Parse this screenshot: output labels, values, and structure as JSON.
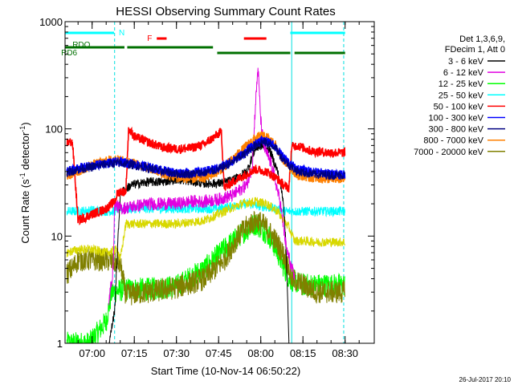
{
  "chart_data": {
    "type": "line",
    "title": "HESSI Observing Summary Count Rates",
    "xlabel": "Start Time (10-Nov-14 06:50:22)",
    "ylabel": "Count Rate (s⁻¹ detector⁻¹)",
    "ylabel_main": "Count Rate (s",
    "ylabel_sup1": "-1",
    "ylabel_mid": " detector",
    "ylabel_sup2": "-1",
    "ylabel_end": ")",
    "y_scale": "log",
    "ylim": [
      1,
      1000
    ],
    "xlim_minutes": [
      -9.63,
      100.37
    ],
    "x_ticks": [
      {
        "label": "07:00",
        "minutes": 0
      },
      {
        "label": "07:15",
        "minutes": 15
      },
      {
        "label": "07:30",
        "minutes": 30
      },
      {
        "label": "07:45",
        "minutes": 45
      },
      {
        "label": "08:00",
        "minutes": 60
      },
      {
        "label": "08:15",
        "minutes": 75
      },
      {
        "label": "08:30",
        "minutes": 90
      }
    ],
    "y_ticks": [
      {
        "label": "1",
        "value": 1
      },
      {
        "label": "10",
        "value": 10
      },
      {
        "label": "100",
        "value": 100
      },
      {
        "label": "1000",
        "value": 1000
      }
    ],
    "legend_header": [
      "Det 1,3,6,9,",
      "FDecim 1, Att 0"
    ],
    "legend_placement": "right",
    "footer_date": "26-Jul-2017 20:10",
    "series": [
      {
        "name": "3 - 6 keV",
        "color": "#000000",
        "points": [
          [
            6,
            1
          ],
          [
            8,
            2
          ],
          [
            10,
            25
          ],
          [
            14,
            30
          ],
          [
            20,
            32
          ],
          [
            25,
            32
          ],
          [
            30,
            34
          ],
          [
            40,
            31
          ],
          [
            45,
            31
          ],
          [
            50,
            33
          ],
          [
            55,
            40
          ],
          [
            58,
            65
          ],
          [
            60,
            70
          ],
          [
            63,
            65
          ],
          [
            66,
            40
          ],
          [
            68,
            22
          ],
          [
            69,
            8
          ],
          [
            70,
            1
          ]
        ]
      },
      {
        "name": "6 - 12 keV",
        "color": "#e000e0",
        "points": [
          [
            6,
            2.5
          ],
          [
            7.5,
            5
          ],
          [
            8,
            20
          ],
          [
            10,
            18
          ],
          [
            15,
            19
          ],
          [
            20,
            20
          ],
          [
            25,
            20
          ],
          [
            30,
            20
          ],
          [
            35,
            21
          ],
          [
            40,
            21
          ],
          [
            45,
            22
          ],
          [
            50,
            24
          ],
          [
            55,
            30
          ],
          [
            57,
            45
          ],
          [
            58,
            150
          ],
          [
            59,
            380
          ],
          [
            60,
            120
          ],
          [
            61,
            70
          ],
          [
            62,
            60
          ],
          [
            64,
            45
          ],
          [
            67,
            20
          ],
          [
            69,
            8
          ],
          [
            71,
            5
          ],
          [
            72,
            4
          ]
        ]
      },
      {
        "name": "12 - 25 keV",
        "color": "#00ff00",
        "points": [
          [
            -9,
            1
          ],
          [
            -1,
            1
          ],
          [
            5,
            1.6
          ],
          [
            7,
            3
          ],
          [
            12,
            3.2
          ],
          [
            20,
            3.2
          ],
          [
            30,
            3.4
          ],
          [
            40,
            5
          ],
          [
            48,
            8
          ],
          [
            54,
            11
          ],
          [
            58,
            13
          ],
          [
            60,
            12
          ],
          [
            63,
            10
          ],
          [
            66,
            7
          ],
          [
            70,
            4
          ],
          [
            75,
            3.5
          ],
          [
            80,
            3.5
          ],
          [
            85,
            3.5
          ],
          [
            90,
            3.5
          ]
        ]
      },
      {
        "name": "25 - 50 keV",
        "color": "#00ffff",
        "points": [
          [
            -9,
            17
          ],
          [
            -5,
            17
          ],
          [
            0,
            17.5
          ],
          [
            5,
            17
          ],
          [
            8,
            17
          ],
          [
            9,
            18
          ],
          [
            12,
            18
          ],
          [
            20,
            18
          ],
          [
            30,
            18
          ],
          [
            40,
            18
          ],
          [
            45,
            18
          ],
          [
            50,
            19
          ],
          [
            55,
            20
          ],
          [
            60,
            19
          ],
          [
            65,
            18
          ],
          [
            69,
            17
          ],
          [
            73,
            17
          ],
          [
            80,
            17
          ],
          [
            90,
            17
          ]
        ]
      },
      {
        "name": "50 - 100 keV",
        "color": "#ff0000",
        "points": [
          [
            -9,
            75
          ],
          [
            -7,
            75
          ],
          [
            -5,
            14
          ],
          [
            0,
            16
          ],
          [
            5,
            18
          ],
          [
            8,
            21
          ],
          [
            9,
            25
          ],
          [
            10,
            26
          ],
          [
            12,
            26
          ],
          [
            13,
            100
          ],
          [
            15,
            85
          ],
          [
            20,
            75
          ],
          [
            25,
            67
          ],
          [
            30,
            65
          ],
          [
            35,
            66
          ],
          [
            40,
            72
          ],
          [
            45,
            90
          ],
          [
            46,
            95
          ],
          [
            47,
            28
          ],
          [
            50,
            32
          ],
          [
            55,
            38
          ],
          [
            58,
            42
          ],
          [
            62,
            40
          ],
          [
            66,
            34
          ],
          [
            68,
            30
          ],
          [
            70,
            28
          ],
          [
            71,
            68
          ],
          [
            73,
            70
          ],
          [
            78,
            62
          ],
          [
            85,
            60
          ],
          [
            90,
            60
          ]
        ]
      },
      {
        "name": "100 - 300 keV",
        "color": "#0000ff",
        "points": [
          [
            -9,
            40
          ],
          [
            -5,
            43
          ],
          [
            0,
            45
          ],
          [
            5,
            48
          ],
          [
            10,
            49
          ],
          [
            15,
            47
          ],
          [
            20,
            44
          ],
          [
            25,
            41
          ],
          [
            30,
            39
          ],
          [
            35,
            39
          ],
          [
            40,
            40
          ],
          [
            45,
            43
          ],
          [
            50,
            50
          ],
          [
            55,
            62
          ],
          [
            58,
            72
          ],
          [
            60,
            78
          ],
          [
            62,
            76
          ],
          [
            65,
            70
          ],
          [
            67,
            58
          ],
          [
            70,
            48
          ],
          [
            73,
            42
          ],
          [
            78,
            40
          ],
          [
            85,
            38
          ],
          [
            90,
            38
          ]
        ]
      },
      {
        "name": "300 - 800 keV",
        "color": "#000080",
        "points": [
          [
            -9,
            39
          ],
          [
            -5,
            42
          ],
          [
            0,
            44
          ],
          [
            5,
            47
          ],
          [
            10,
            48
          ],
          [
            15,
            46
          ],
          [
            20,
            43
          ],
          [
            25,
            40
          ],
          [
            30,
            38
          ],
          [
            35,
            38
          ],
          [
            40,
            39
          ],
          [
            45,
            42
          ],
          [
            50,
            49
          ],
          [
            55,
            60
          ],
          [
            58,
            70
          ],
          [
            60,
            76
          ],
          [
            62,
            74
          ],
          [
            65,
            68
          ],
          [
            67,
            56
          ],
          [
            70,
            46
          ],
          [
            73,
            40
          ],
          [
            78,
            38
          ],
          [
            85,
            37
          ],
          [
            90,
            37
          ]
        ]
      },
      {
        "name": "800 - 7000 keV",
        "color": "#ff8000",
        "points": [
          [
            -9,
            36
          ],
          [
            -5,
            40
          ],
          [
            0,
            46
          ],
          [
            5,
            50
          ],
          [
            8,
            52
          ],
          [
            10,
            51
          ],
          [
            15,
            48
          ],
          [
            20,
            43
          ],
          [
            25,
            38
          ],
          [
            30,
            35
          ],
          [
            35,
            34
          ],
          [
            40,
            35
          ],
          [
            45,
            40
          ],
          [
            50,
            52
          ],
          [
            55,
            70
          ],
          [
            58,
            82
          ],
          [
            60,
            86
          ],
          [
            62,
            84
          ],
          [
            65,
            72
          ],
          [
            67,
            56
          ],
          [
            70,
            45
          ],
          [
            73,
            37
          ],
          [
            78,
            35
          ],
          [
            85,
            34
          ],
          [
            90,
            34
          ]
        ]
      },
      {
        "name": "7000 - 20000 keV",
        "color": "#808000",
        "points": [
          [
            -9,
            4.5
          ],
          [
            -7,
            5
          ],
          [
            -5,
            6
          ],
          [
            0,
            6
          ],
          [
            5,
            6
          ],
          [
            10,
            5.5
          ],
          [
            12,
            2.8
          ],
          [
            15,
            2.9
          ],
          [
            20,
            3
          ],
          [
            30,
            3.3
          ],
          [
            40,
            4
          ],
          [
            47,
            6
          ],
          [
            52,
            10
          ],
          [
            56,
            13
          ],
          [
            59,
            14
          ],
          [
            62,
            12
          ],
          [
            66,
            8.5
          ],
          [
            69,
            6
          ],
          [
            71,
            4
          ],
          [
            75,
            3.5
          ],
          [
            80,
            3
          ],
          [
            85,
            3
          ],
          [
            90,
            3
          ]
        ]
      },
      {
        "name": "",
        "color": "#d8d800",
        "points": [
          [
            -9,
            7
          ],
          [
            -5,
            7.5
          ],
          [
            0,
            7.5
          ],
          [
            5,
            7
          ],
          [
            9,
            7.5
          ],
          [
            10,
            6
          ],
          [
            12,
            13
          ],
          [
            15,
            13
          ],
          [
            20,
            13
          ],
          [
            30,
            13
          ],
          [
            40,
            14
          ],
          [
            47,
            17
          ],
          [
            53,
            20
          ],
          [
            58,
            21
          ],
          [
            62,
            20
          ],
          [
            66,
            17
          ],
          [
            70,
            12
          ],
          [
            72,
            9
          ],
          [
            75,
            9
          ],
          [
            80,
            8.8
          ],
          [
            85,
            8.8
          ],
          [
            90,
            8.8
          ]
        ]
      }
    ],
    "state_bars": [
      {
        "label": "N",
        "color": "#00ffff",
        "level": "top",
        "segments": [
          [
            -9.6,
            7.8
          ],
          [
            70.5,
            90
          ]
        ]
      },
      {
        "label": "F",
        "color": "#ff0000",
        "level": "upper",
        "segments": [
          [
            23,
            26.5
          ],
          [
            54,
            62
          ]
        ]
      },
      {
        "label": "RDO",
        "color": "#007000",
        "level": "middle",
        "segments": [
          [
            -9.6,
            11.5
          ],
          [
            12.5,
            43
          ]
        ]
      },
      {
        "label": "RD6",
        "color": "#007000",
        "level": "lower",
        "segments": [
          [
            44.5,
            70.5
          ],
          [
            72,
            90
          ]
        ]
      }
    ],
    "vertical_markers_minutes": [
      -9.63,
      8,
      71,
      89.5
    ]
  }
}
